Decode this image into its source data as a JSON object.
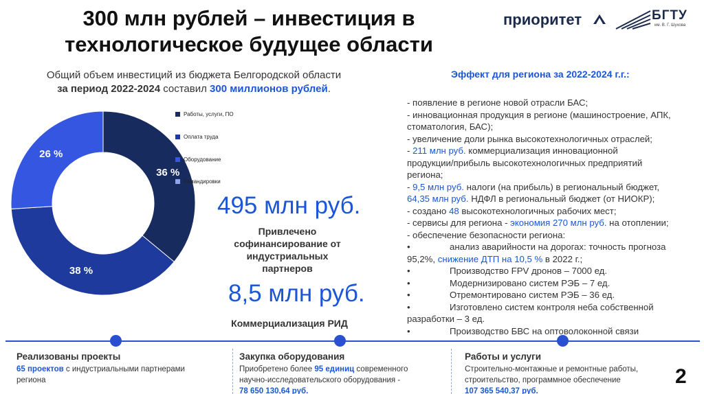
{
  "title": {
    "line1": "300 млн рублей – инвестиция в",
    "line2": "технологическое будущее области"
  },
  "logos": {
    "priority": "приоритет",
    "university": "БГТУ",
    "university_sub": "им. В. Г. Шухова"
  },
  "intro": {
    "part1": "Общий объем инвестиций из бюджета Белгородской области",
    "part2": "за период 2022-2024",
    "part3": " составил ",
    "part4": "300 миллионов рублей",
    "part5": "."
  },
  "colors": {
    "accent": "#1a56d6",
    "navy": "#172b5e",
    "dark_blue": "#1d3a9c",
    "mid_blue": "#3556e0",
    "light_blue": "#8fa4ec"
  },
  "chart_data": {
    "type": "pie",
    "donut": true,
    "categories": [
      "Работы, услуги, ПО",
      "Оплата труда",
      "Оборудование",
      "Командировки"
    ],
    "values": [
      36,
      38,
      26,
      0
    ],
    "slice_labels": [
      "36 %",
      "38 %",
      "26 %",
      ""
    ],
    "legend_position": "right"
  },
  "stats": {
    "cofinancing_value": "495 млн руб.",
    "cofinancing_caption": [
      "Привлечено",
      "софинансирование от",
      "индустриальных",
      "партнеров"
    ],
    "commercialization_value": "8,5 млн руб.",
    "commercialization_caption": "Коммерциализация РИД"
  },
  "effects": {
    "title": "Эффект для региона за 2022-2024 г.г.:",
    "l1": "- появление в регионе новой отрасли БАС;",
    "l2": "- инновационная продукция в регионе (машиностроение, АПК,",
    "l3": "стоматология, БАС);",
    "l4": "- увеличение доли рынка высокотехнологичных отраслей;",
    "l5a": "- ",
    "l5b": "211 млн руб.",
    "l5c": " коммерциализация инновационной",
    "l6": "продукции/прибыль высокотехнологичных предприятий",
    "l7": "региона;",
    "l8a": "- ",
    "l8b": "9,5 млн руб.",
    "l8c": " налоги (на прибыль) в региональный бюджет,",
    "l9a": "64,35 млн руб.",
    "l9b": " НДФЛ в региональный бюджет (от НИОКР);",
    "l10a": "- создано ",
    "l10b": "48",
    "l10c": " высокотехнологичных рабочих мест;",
    "l11a": "- сервисы для региона - ",
    "l11b": "экономия 270 млн руб.",
    "l11c": " на отоплении;",
    "l12": "- обеспечение безопасности региона:",
    "bullet": "•",
    "l13": "анализ аварийности на дорогах: точность прогноза",
    "l14a": "95,2%, ",
    "l14b": "снижение ДТП на 10,5 %",
    "l14c": " в 2022 г.;",
    "l15": "Производство  FPV дронов – 7000 ед.",
    "l16": "Модернизировано систем РЭБ – 7 ед.",
    "l17": "Отремонтировано систем РЭБ – 36 ед.",
    "l18": "Изготовлено систем контроля неба собственной",
    "l19": "разработки – 3 ед.",
    "l20": "Производство БВС на оптоволоконной связи"
  },
  "cards": {
    "projects": {
      "title": "Реализованы проекты",
      "count": "65 проектов",
      "text1": " с индустриальными партнерами",
      "text2": "региона"
    },
    "equipment": {
      "title": "Закупка оборудования",
      "text1a": "Приобретено более ",
      "text1b": "95 единиц",
      "text1c": " современного",
      "text2": "научно-исследовательского оборудования -",
      "amount": "78 650 130,64 руб."
    },
    "works": {
      "title": "Работы и услуги",
      "text1": "Строительно-монтажные и ремонтные работы,",
      "text2": "строительство, программное обеспечение",
      "amount": "107 365 540,37 руб."
    }
  },
  "page_number": "2"
}
